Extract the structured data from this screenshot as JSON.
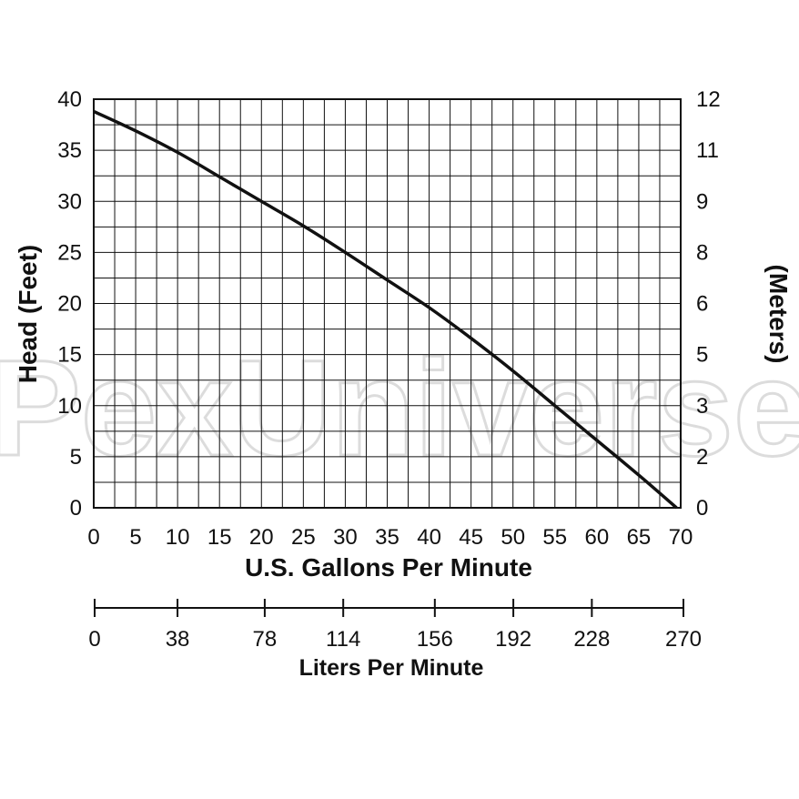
{
  "chart_data": {
    "type": "line",
    "title": "",
    "xlabel": "U.S. Gallons Per Minute",
    "ylabel": "Head (Feet)",
    "ylabel_right": "(Meters)",
    "secondary_xlabel": "Liters Per Minute",
    "xlim": [
      0,
      70
    ],
    "ylim": [
      0,
      40
    ],
    "x_ticks": [
      "0",
      "5",
      "10",
      "15",
      "20",
      "25",
      "30",
      "35",
      "40",
      "45",
      "50",
      "55",
      "60",
      "65",
      "70"
    ],
    "y_ticks": [
      "0",
      "5",
      "10",
      "15",
      "20",
      "25",
      "30",
      "35",
      "40"
    ],
    "y_right_ticks": [
      "0",
      "2",
      "3",
      "5",
      "6",
      "8",
      "9",
      "11",
      "12"
    ],
    "secondary_x_ticks": [
      "0",
      "38",
      "78",
      "114",
      "156",
      "192",
      "228",
      "270"
    ],
    "grid": true,
    "series": [
      {
        "x": [
          0,
          5,
          10,
          15,
          20,
          25,
          30,
          35,
          40,
          45,
          50,
          55,
          60,
          65,
          69.5
        ],
        "y": [
          38.8,
          36.9,
          34.8,
          32.4,
          30.0,
          27.6,
          25.0,
          22.3,
          19.6,
          16.6,
          13.4,
          10.0,
          6.6,
          3.2,
          0
        ]
      }
    ]
  },
  "watermark": "PexUniverse"
}
